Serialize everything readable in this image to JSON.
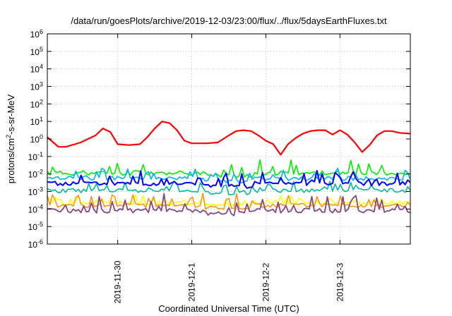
{
  "chart_data": {
    "type": "line",
    "title": "/data/run/goesPlots/archive/2019-12-03/23:00/flux/../flux/5daysEarthFluxes.txt",
    "xlabel": "Coordinated Universal Time (UTC)",
    "ylabel": {
      "base": "protons/cm",
      "sup": "2",
      "rest": "-s-sr-MeV"
    },
    "y_scale": "log",
    "ylim_exponents": [
      -6,
      6
    ],
    "y_tick_base": "10",
    "y_tick_exponents": [
      "6",
      "5",
      "4",
      "3",
      "2",
      "1",
      "0",
      "-1",
      "-2",
      "-3",
      "-4",
      "-5",
      "-6"
    ],
    "x_ticks": [
      "2019-11-30",
      "2019-12-1",
      "2019-12-2",
      "2019-12-3"
    ],
    "x_range_days": [
      -0.95,
      3.95
    ],
    "x_tick_days": [
      0,
      1,
      2,
      3
    ],
    "grid": true,
    "series_log10": [
      {
        "color": "#ff0000",
        "width": 2.2,
        "x": [
          -0.95,
          -0.8,
          -0.7,
          -0.5,
          -0.3,
          -0.2,
          -0.1,
          0,
          0.15,
          0.3,
          0.4,
          0.5,
          0.6,
          0.7,
          0.8,
          0.9,
          1,
          1.1,
          1.2,
          1.35,
          1.5,
          1.6,
          1.7,
          1.8,
          1.9,
          2,
          2.1,
          2.2,
          2.3,
          2.4,
          2.5,
          2.6,
          2.7,
          2.8,
          2.9,
          3,
          3.1,
          3.2,
          3.3,
          3.4,
          3.5,
          3.6,
          3.7,
          3.8,
          3.95
        ],
        "y": [
          0.1,
          -0.45,
          -0.45,
          -0.2,
          0.2,
          0.6,
          0.4,
          -0.3,
          -0.35,
          -0.3,
          0.1,
          0.6,
          1.0,
          0.9,
          0.5,
          -0.1,
          -0.25,
          -0.25,
          -0.25,
          -0.2,
          0.2,
          0.45,
          0.5,
          0.45,
          0.2,
          -0.1,
          -0.3,
          -0.9,
          -0.3,
          0.05,
          0.3,
          0.45,
          0.5,
          0.5,
          0.25,
          0.5,
          0.25,
          -0.2,
          -0.75,
          -0.35,
          0.2,
          0.45,
          0.45,
          0.35,
          0.3
        ]
      },
      {
        "color": "#00ee00",
        "width": 1.6,
        "base": -1.95,
        "amp": 0.85,
        "seed": 11
      },
      {
        "color": "#00bb99",
        "width": 1.6,
        "base": -2.95,
        "amp": 0.55,
        "seed": 23
      },
      {
        "color": "#00b0ff",
        "width": 1.6,
        "base": -2.25,
        "amp": 0.6,
        "seed": 37
      },
      {
        "color": "#0000ff",
        "width": 2.0,
        "base": -2.55,
        "amp": 0.7,
        "seed": 5
      },
      {
        "color": "#ffff00",
        "width": 1.6,
        "base": -3.65,
        "amp": 0.4,
        "seed": 17
      },
      {
        "color": "#ff8800",
        "width": 1.4,
        "base": -3.8,
        "amp": 0.8,
        "seed": 41
      },
      {
        "color": "#884488",
        "width": 1.8,
        "base": -4.1,
        "amp": 0.9,
        "seed": 29
      }
    ]
  }
}
